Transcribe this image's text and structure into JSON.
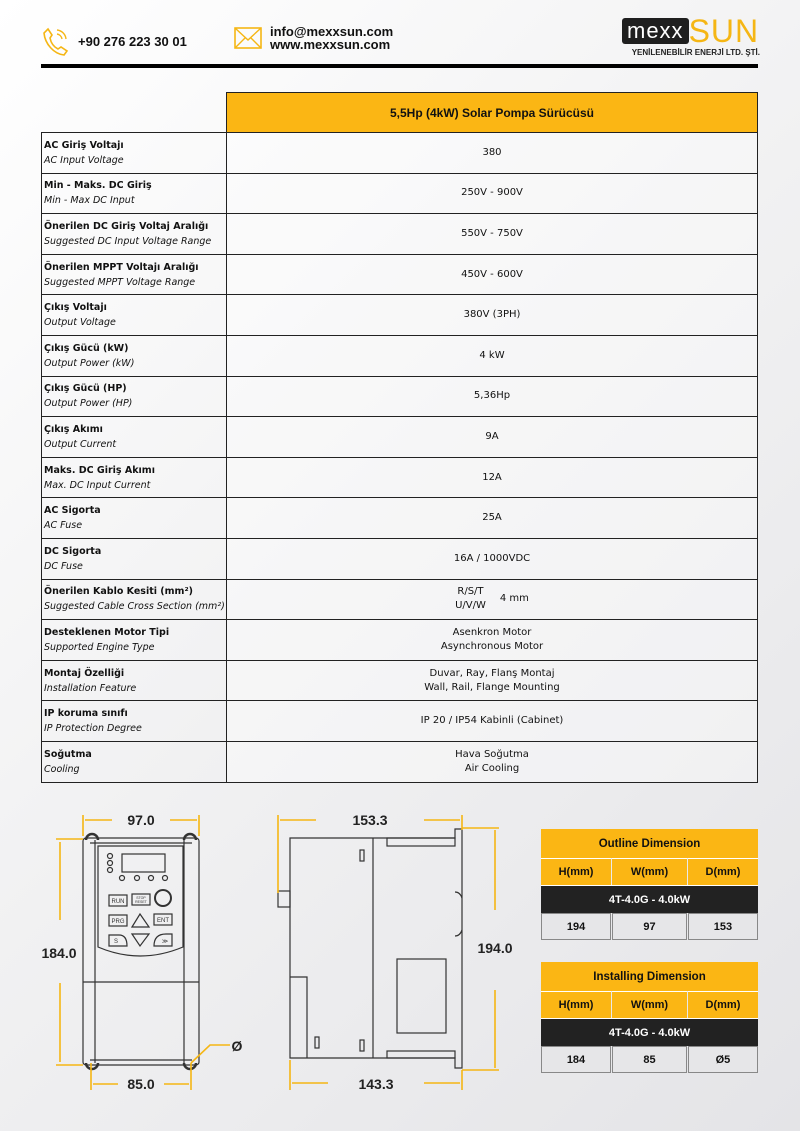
{
  "header": {
    "phone": "+90 276 223 30 01",
    "email": "info@mexxsun.com",
    "website": "www.mexxsun.com",
    "logo": {
      "part1": "mexx",
      "part2": "SUN",
      "subtitle": "YENİLENEBİLİR ENERJİ LTD. ŞTİ."
    },
    "icons": {
      "phone": "phone-icon",
      "email": "envelope-icon"
    },
    "accent_color": "#fbb614"
  },
  "spec_table": {
    "title": "5,5Hp (4kW) Solar Pompa Sürücüsü",
    "rows": [
      {
        "tr": "AC Giriş Voltajı",
        "en": "AC Input Voltage",
        "value": "380"
      },
      {
        "tr": "Min - Maks. DC Giriş",
        "en": "Min - Max DC Input",
        "value": "250V - 900V"
      },
      {
        "tr": "Önerilen DC Giriş Voltaj Aralığı",
        "en": "Suggested DC Input Voltage Range",
        "value": "550V - 750V"
      },
      {
        "tr": "Önerilen MPPT Voltajı Aralığı",
        "en": "Suggested MPPT Voltage Range",
        "value": "450V - 600V"
      },
      {
        "tr": "Çıkış Voltajı",
        "en": "Output Voltage",
        "value": "380V (3PH)"
      },
      {
        "tr": "Çıkış Gücü (kW)",
        "en": "Output Power (kW)",
        "value": "4 kW"
      },
      {
        "tr": "Çıkış Gücü (HP)",
        "en": "Output Power (HP)",
        "value": "5,36Hp"
      },
      {
        "tr": "Çıkış Akımı",
        "en": "Output Current",
        "value": "9A"
      },
      {
        "tr": "Maks. DC Giriş Akımı",
        "en": "Max. DC Input Current",
        "value": "12A"
      },
      {
        "tr": "AC Sigorta",
        "en": "AC Fuse",
        "value": "25A"
      },
      {
        "tr": "DC Sigorta",
        "en": "DC Fuse",
        "value": "16A / 1000VDC"
      }
    ],
    "cable_row": {
      "tr": "Önerilen Kablo Kesiti (mm²)",
      "en": "Suggested Cable Cross Section (mm²)",
      "line1": "R/S/T",
      "line2": "U/V/W",
      "value": "4 mm"
    },
    "two_line_rows": [
      {
        "tr": "Desteklenen Motor Tipi",
        "en": "Supported Engine Type",
        "value1": "Asenkron Motor",
        "value2": "Asynchronous Motor"
      },
      {
        "tr": "Montaj Özelliği",
        "en": "Installation Feature",
        "value1": "Duvar, Ray, Flanş Montaj",
        "value2": "Wall, Rail, Flange Mounting"
      }
    ],
    "ip_row": {
      "tr": "IP koruma sınıfı",
      "en": "IP Protection Degree",
      "value": "IP 20 / IP54 Kabinli (Cabinet)"
    },
    "cooling_row": {
      "tr": "Soğutma",
      "en": "Cooling",
      "value1": "Hava Soğutma",
      "value2": "Air Cooling"
    }
  },
  "drawing": {
    "front_width": "97.0",
    "front_height": "184.0",
    "front_mount_width": "85.0",
    "hole_symbol": "Ø",
    "side_depth_top": "153.3",
    "side_height": "194.0",
    "side_depth_bottom": "143.3",
    "keypad": {
      "run": "RUN",
      "stop": "STOP",
      "reset": "RESET",
      "prg": "PRG",
      "ent": "ENT",
      "s": "S",
      "shift": "≫"
    }
  },
  "outline_dimension": {
    "title": "Outline Dimension",
    "headers": [
      "H(mm)",
      "W(mm)",
      "D(mm)"
    ],
    "model": "4T-4.0G - 4.0kW",
    "values": [
      "194",
      "97",
      "153"
    ]
  },
  "installing_dimension": {
    "title": "Installing Dimension",
    "headers": [
      "H(mm)",
      "W(mm)",
      "D(mm)"
    ],
    "model": "4T-4.0G - 4.0kW",
    "values": [
      "184",
      "85",
      "Ø5"
    ]
  }
}
